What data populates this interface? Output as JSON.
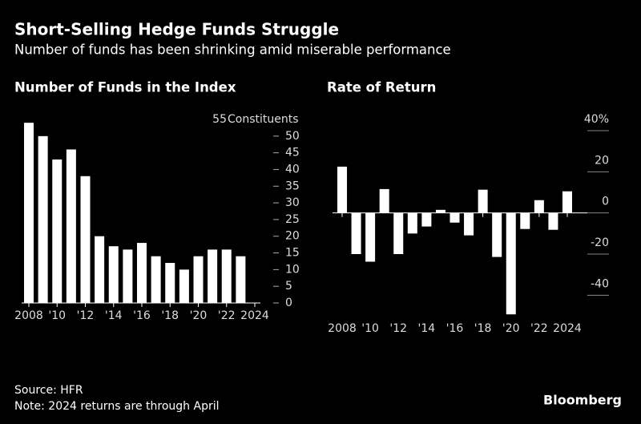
{
  "header": {
    "title": "Short-Selling Hedge Funds Struggle",
    "subtitle": "Number of funds has been shrinking amid miserable performance"
  },
  "chart_data": [
    {
      "type": "bar",
      "title": "Number of Funds in the Index",
      "color": "#ffffff",
      "categories": [
        "2008",
        null,
        "'10",
        null,
        "'12",
        null,
        "'14",
        null,
        "'16",
        null,
        "'18",
        null,
        "'20",
        null,
        "'22",
        null,
        "2024"
      ],
      "values": [
        54,
        50,
        43,
        46,
        38,
        20,
        17,
        16,
        18,
        14,
        12,
        10,
        14,
        16,
        16,
        14,
        null
      ],
      "ylim": [
        0,
        55
      ],
      "yticks": [
        0,
        5,
        10,
        15,
        20,
        25,
        30,
        35,
        40,
        45,
        50,
        55
      ],
      "y_unit": "Constituents"
    },
    {
      "type": "bar",
      "title": "Rate of Return",
      "color": "#ffffff",
      "categories": [
        "2008",
        null,
        "'10",
        null,
        "'12",
        null,
        "'14",
        null,
        "'16",
        null,
        "'18",
        null,
        "'20",
        null,
        "'22",
        null,
        "2024"
      ],
      "values": [
        22.5,
        -20,
        -23.7,
        11.6,
        -20,
        -10,
        -6.6,
        1.5,
        -4.7,
        -10.9,
        11.3,
        -21.4,
        -49.3,
        -7.8,
        6.2,
        -8.2,
        10.5
      ],
      "ylim": [
        -50,
        40
      ],
      "yticks": [
        {
          "value": 40,
          "label": "40%"
        },
        20,
        0,
        -20,
        -40
      ]
    }
  ],
  "footer": {
    "source": "Source: HFR",
    "note": "Note: 2024 returns are through April",
    "brand": "Bloomberg"
  }
}
